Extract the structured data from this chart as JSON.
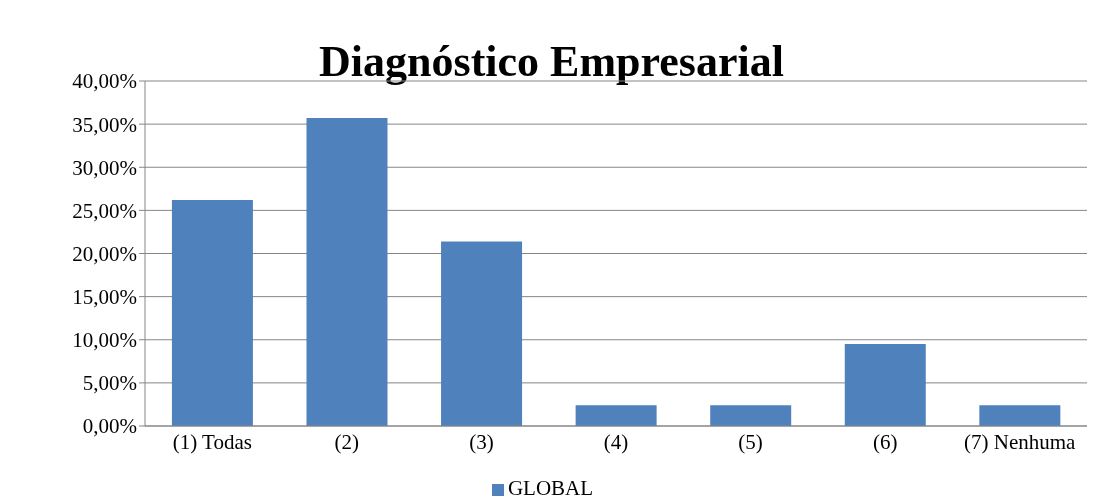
{
  "chart_data": {
    "type": "bar",
    "title": "Diagnóstico Empresarial",
    "categories": [
      "(1) Todas",
      "(2)",
      "(3)",
      "(4)",
      "(5)",
      "(6)",
      "(7) Nenhuma"
    ],
    "series": [
      {
        "name": "GLOBAL",
        "color": "#4f81bd",
        "values": [
          26.2,
          35.7,
          21.4,
          2.4,
          2.4,
          9.5,
          2.4
        ]
      }
    ],
    "ylim": [
      0,
      40
    ],
    "yticks": [
      {
        "value": 0,
        "label": "0,00%"
      },
      {
        "value": 5,
        "label": "5,00%"
      },
      {
        "value": 10,
        "label": "10,00%"
      },
      {
        "value": 15,
        "label": "15,00%"
      },
      {
        "value": 20,
        "label": "20,00%"
      },
      {
        "value": 25,
        "label": "25,00%"
      },
      {
        "value": 30,
        "label": "30,00%"
      },
      {
        "value": 35,
        "label": "35,00%"
      },
      {
        "value": 40,
        "label": "40,00%"
      }
    ],
    "grid": "y",
    "legend": "bottom"
  }
}
